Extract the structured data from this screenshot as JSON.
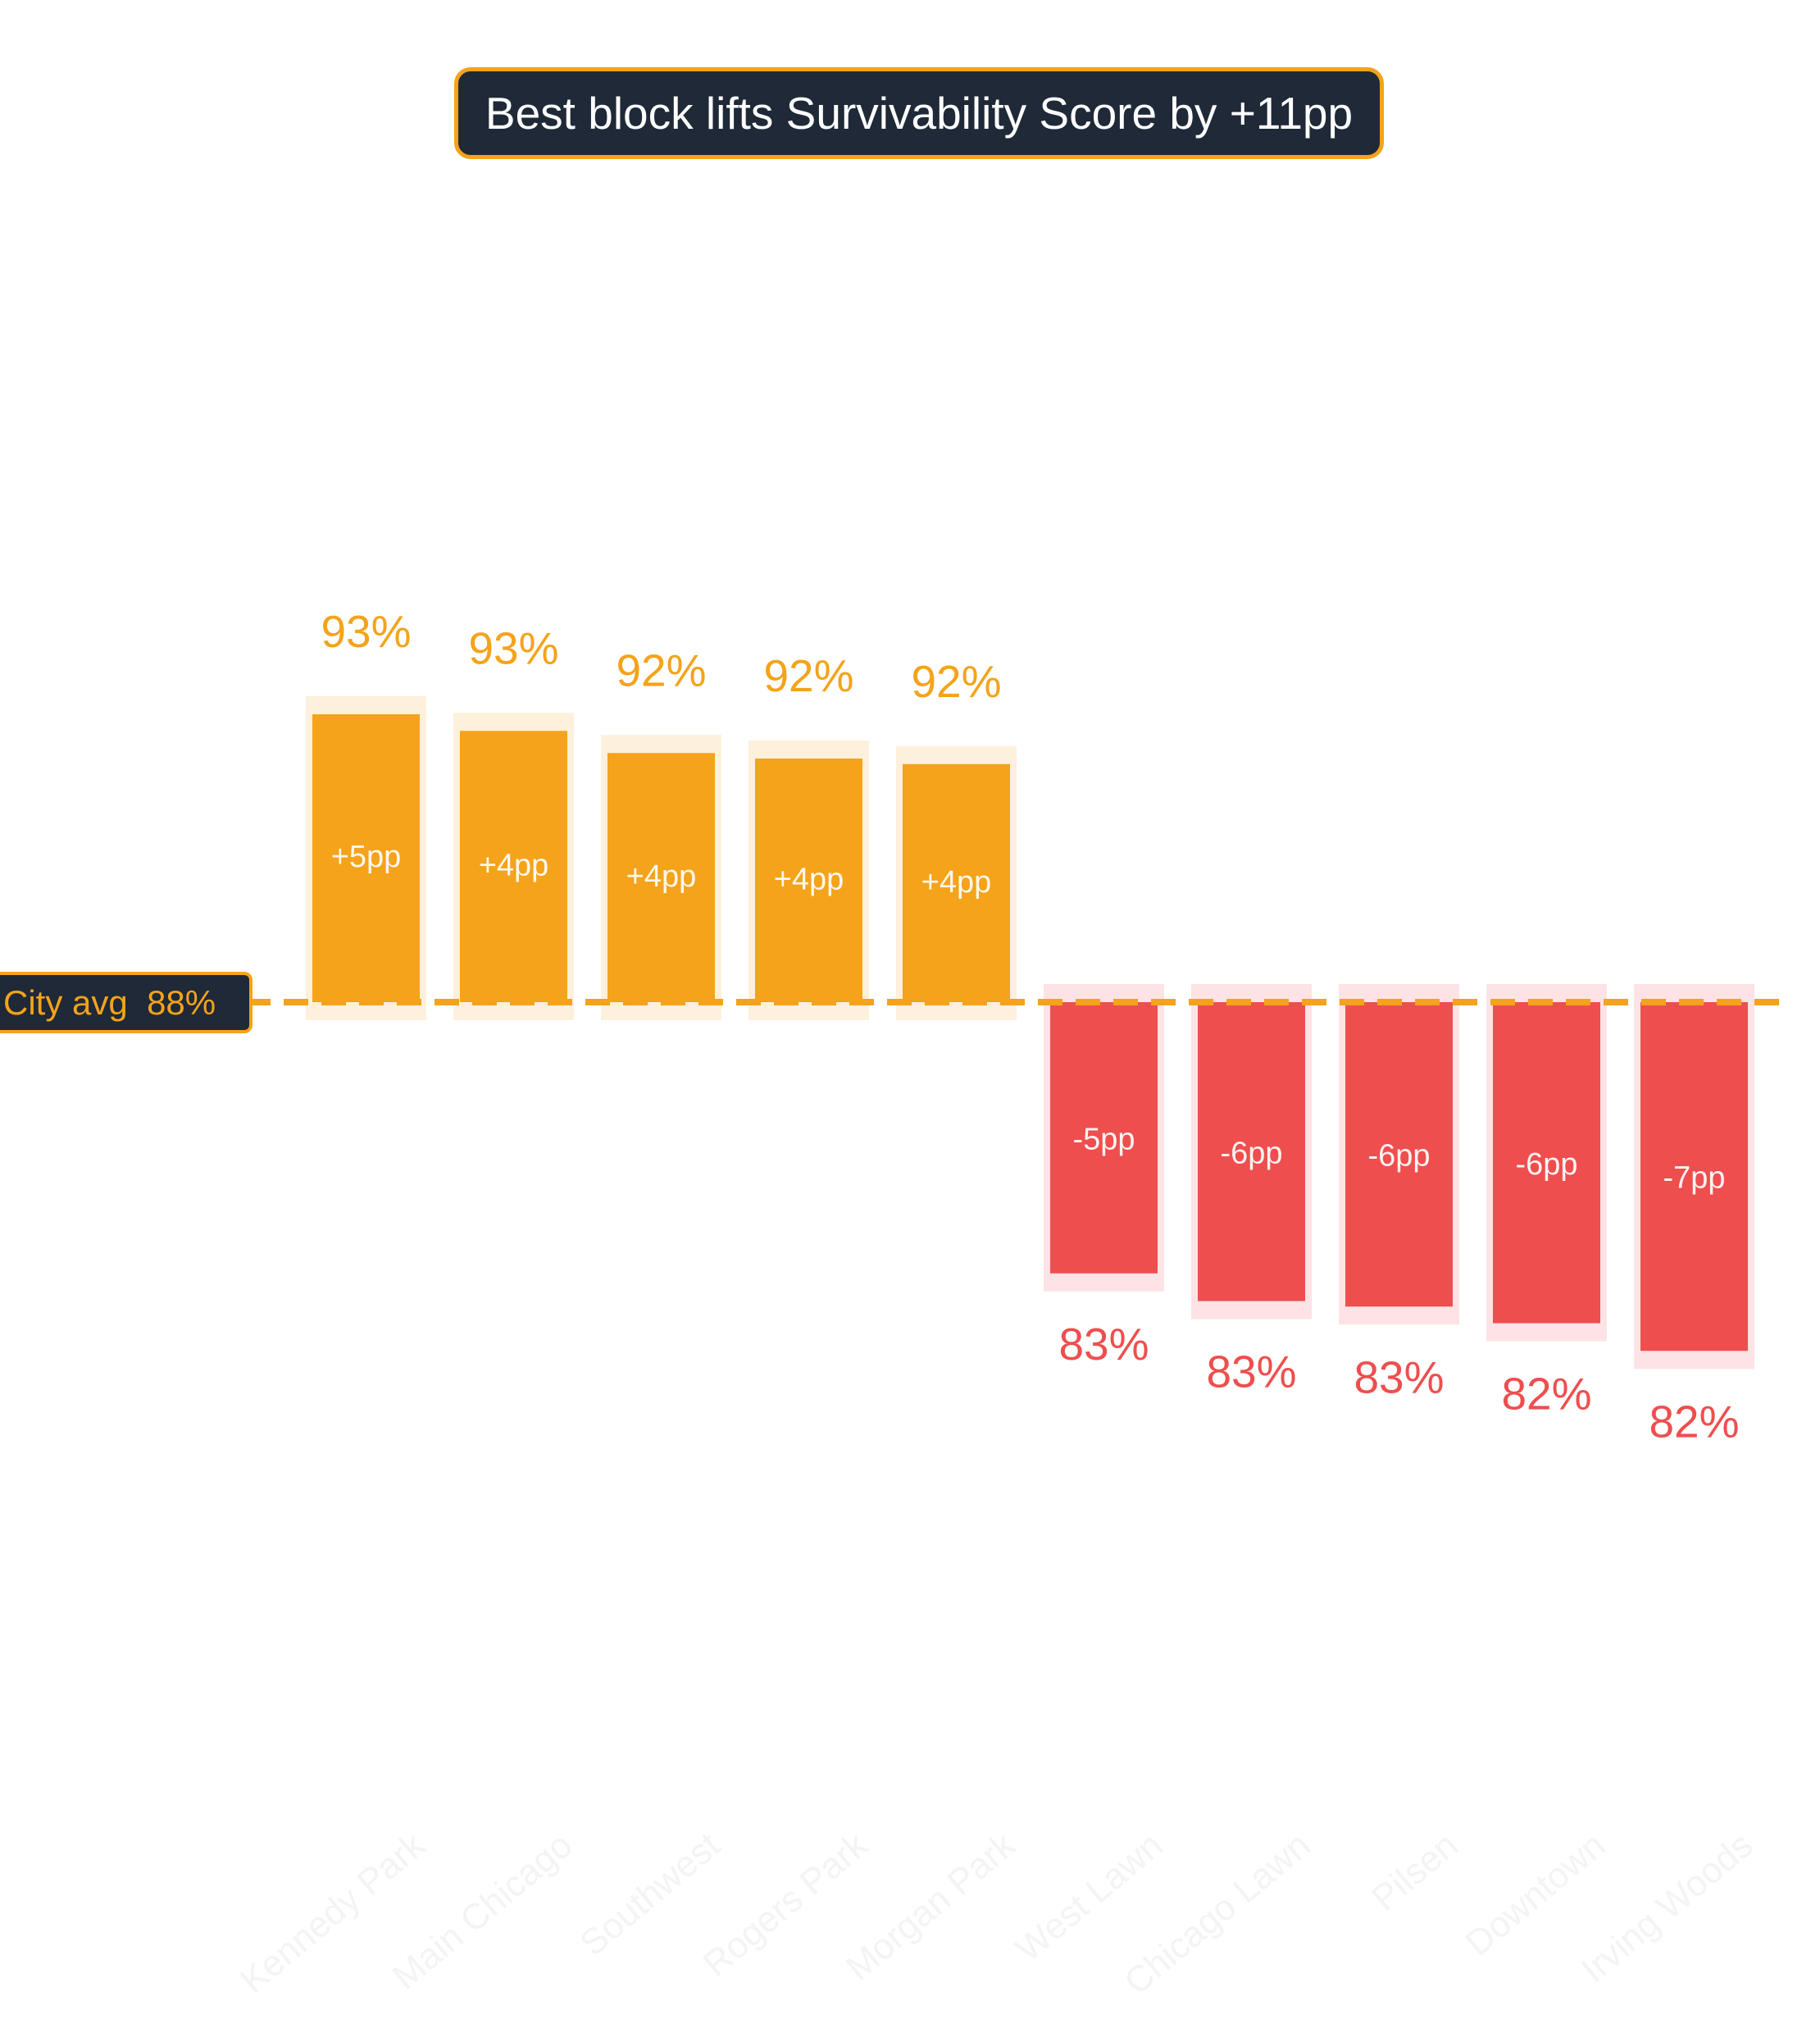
{
  "chart_data": {
    "type": "bar",
    "title": "Best block lifts Survivability Score by +11pp",
    "xlabel": "",
    "ylabel": "",
    "reference_line": {
      "label": "City avg",
      "value_label": "88%",
      "value": 88
    },
    "categories": [
      "Kennedy Park",
      "Main Chicago",
      "Southwest",
      "Rogers Park",
      "Morgan Park",
      "West Lawn",
      "Chicago Lawn",
      "Pilsen",
      "Downtown",
      "Irving Woods"
    ],
    "values": [
      93.2,
      92.9,
      92.5,
      92.4,
      92.3,
      83.1,
      82.6,
      82.5,
      82.2,
      81.7
    ],
    "value_labels": [
      "93%",
      "93%",
      "92%",
      "92%",
      "92%",
      "83%",
      "83%",
      "83%",
      "82%",
      "82%"
    ],
    "delta_labels": [
      "+5pp",
      "+4pp",
      "+4pp",
      "+4pp",
      "+4pp",
      "-5pp",
      "-6pp",
      "-6pp",
      "-6pp",
      "-7pp"
    ],
    "ylim": [
      75,
      100
    ],
    "grid": false,
    "legend": "none",
    "colors": {
      "above": "#f4a31a",
      "below": "#ef4e4e",
      "above_halo": "#fdf0dc",
      "below_halo": "#fde3e5",
      "title_bg": "#1f2937",
      "category_label": "#f4f4f6"
    }
  }
}
